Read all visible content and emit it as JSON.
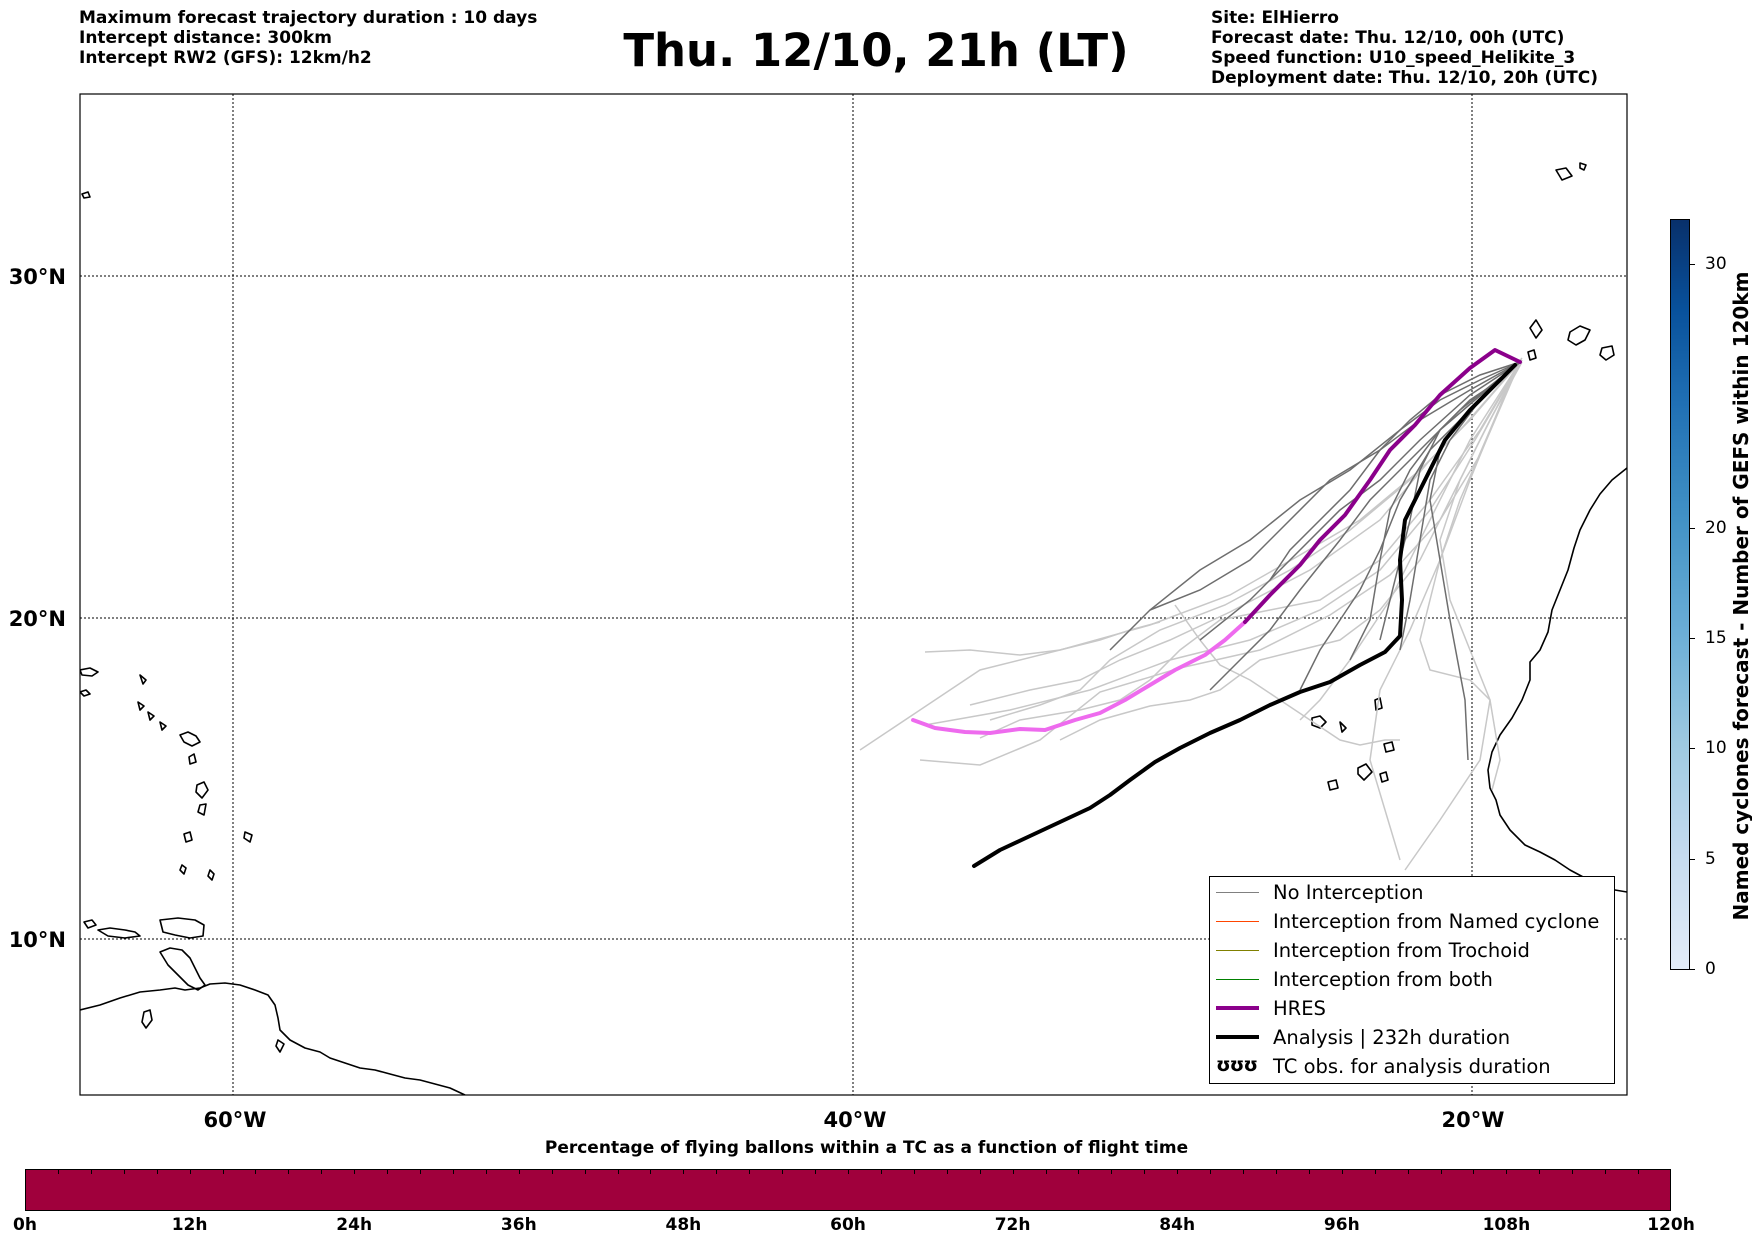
{
  "header": {
    "left_lines": [
      "Maximum forecast trajectory duration : 10 days",
      "Intercept distance: 300km",
      "Intercept RW2 (GFS):  12km/h2"
    ],
    "title": "Thu. 12/10, 21h (LT)",
    "right_lines": [
      "Site: ElHierro",
      "Forecast date: Thu. 12/10, 00h (UTC)",
      "Speed function: U10_speed_Helikite_3",
      "Deployment date: Thu. 12/10, 20h (UTC)"
    ]
  },
  "map": {
    "lat_labels": [
      "30°N",
      "20°N",
      "10°N"
    ],
    "lon_labels": [
      "60°W",
      "40°W",
      "20°W"
    ],
    "colors": {
      "ensemble": "#6e6e6e",
      "ensemble_light": "#c8c8c8",
      "hres": "#8b008b",
      "hres_light": "#ee6bee",
      "analysis": "#000000"
    }
  },
  "legend": {
    "items": [
      {
        "label": "No Interception",
        "color": "#808080"
      },
      {
        "label": "Interception from Named cyclone",
        "color": "#ff4500"
      },
      {
        "label": "Interception from Trochoid",
        "color": "#808000"
      },
      {
        "label": "Interception from both",
        "color": "#008000"
      },
      {
        "label": "HRES",
        "color": "#8b008b"
      },
      {
        "label": "Analysis | 232h duration",
        "color": "#000000"
      },
      {
        "label": "TC obs. for analysis duration",
        "symbol": "ʊʊʊ"
      }
    ]
  },
  "colorbar_right": {
    "title": "Named cyclones forecast - Number of GEFS within 120km",
    "ticks": [
      "0",
      "5",
      "10",
      "15",
      "20",
      "30"
    ],
    "range": [
      0,
      34
    ]
  },
  "colorbar_bottom": {
    "title": "Percentage of flying ballons within a TC as a function of flight time",
    "ticks": [
      "0h",
      "12h",
      "24h",
      "36h",
      "48h",
      "60h",
      "72h",
      "84h",
      "96h",
      "108h",
      "120h"
    ],
    "fill_color": "#a0003c"
  }
}
